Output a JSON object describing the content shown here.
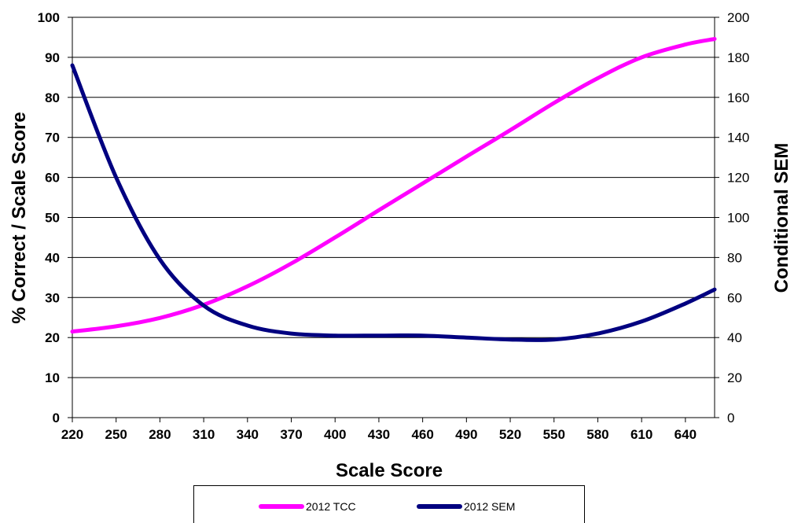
{
  "chart_data": {
    "type": "line",
    "xlabel": "Scale Score",
    "ylabel_left": "% Correct / Scale Score",
    "ylabel_right": "Conditional SEM",
    "xlim": [
      220,
      660
    ],
    "ylim_left": [
      0,
      100
    ],
    "ylim_right": [
      0,
      200
    ],
    "x_ticks": [
      220,
      250,
      280,
      310,
      340,
      370,
      400,
      430,
      460,
      490,
      520,
      550,
      580,
      610,
      640
    ],
    "y_ticks_left": [
      0,
      10,
      20,
      30,
      40,
      50,
      60,
      70,
      80,
      90,
      100
    ],
    "y_ticks_right": [
      0,
      20,
      40,
      60,
      80,
      100,
      120,
      140,
      160,
      180,
      200
    ],
    "grid": "horizontal",
    "legend_position": "bottom",
    "x": [
      220,
      250,
      280,
      310,
      340,
      370,
      400,
      430,
      460,
      490,
      520,
      550,
      580,
      610,
      640,
      660
    ],
    "series": [
      {
        "name": "2012 TCC",
        "axis": "left",
        "color": "#FF00FF",
        "values": [
          21.5,
          22.8,
          24.9,
          28.2,
          32.8,
          38.5,
          45.0,
          51.8,
          58.5,
          65.2,
          71.8,
          78.6,
          84.8,
          90.0,
          93.2,
          94.6
        ]
      },
      {
        "name": "2012 SEM",
        "axis": "right",
        "color": "#000080",
        "values": [
          176,
          120,
          79,
          56,
          46,
          42,
          41,
          41,
          41,
          40,
          39,
          39,
          42,
          48,
          57,
          64
        ]
      }
    ]
  }
}
